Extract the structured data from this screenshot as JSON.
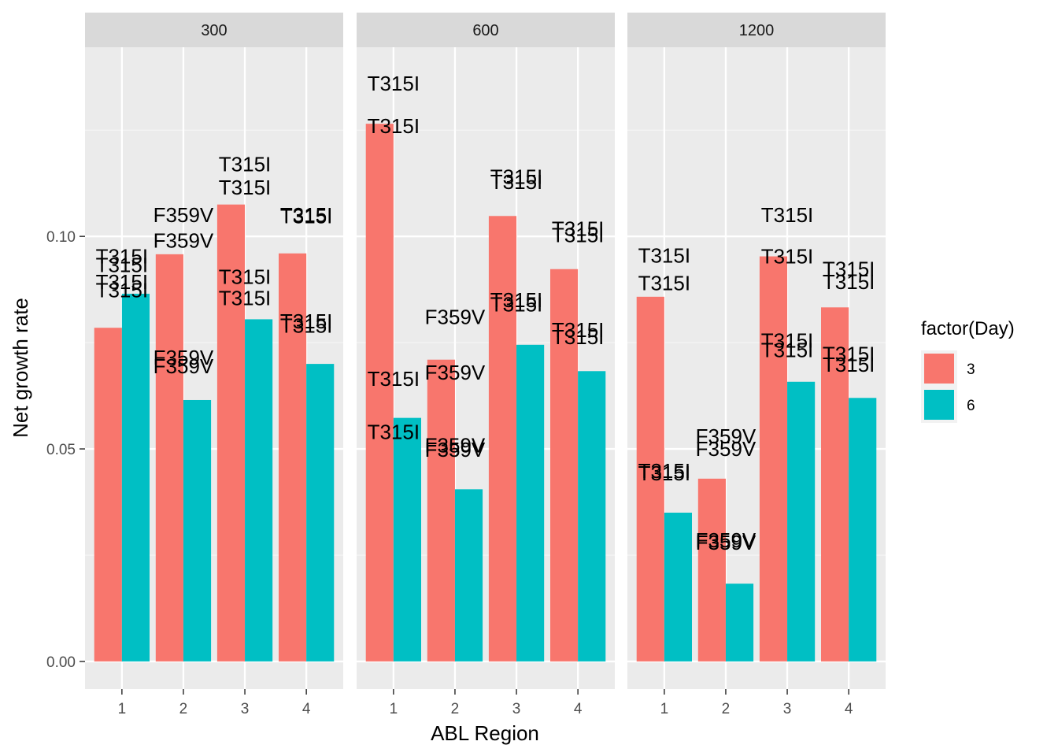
{
  "chart_data": {
    "type": "bar",
    "xlabel": "ABL Region",
    "ylabel": "Net growth rate",
    "ylim": [
      -0.0065,
      0.1445
    ],
    "yticks": [
      0.0,
      0.05,
      0.1
    ],
    "ytick_labels": [
      "0.00",
      "0.05",
      "0.10"
    ],
    "categories": [
      "1",
      "2",
      "3",
      "4"
    ],
    "legend": {
      "title": "factor(Day)",
      "entries": [
        {
          "label": "3",
          "color": "#F8766D"
        },
        {
          "label": "6",
          "color": "#00BFC4"
        }
      ]
    },
    "panels": [
      {
        "title": "300",
        "series": [
          {
            "name": "3",
            "values": [
              0.0785,
              0.0958,
              0.1075,
              0.096
            ]
          },
          {
            "name": "6",
            "values": [
              0.0865,
              0.0615,
              0.0805,
              0.07
            ]
          }
        ],
        "labels": [
          {
            "text": "T315I",
            "x": 1,
            "y": 0.0953
          },
          {
            "text": "T315I",
            "x": 1,
            "y": 0.0933
          },
          {
            "text": "T315I",
            "x": 1,
            "y": 0.0893
          },
          {
            "text": "T315I",
            "x": 1,
            "y": 0.0873
          },
          {
            "text": "F359V",
            "x": 2,
            "y": 0.105
          },
          {
            "text": "F359V",
            "x": 2,
            "y": 0.099
          },
          {
            "text": "F359V",
            "x": 2,
            "y": 0.0715
          },
          {
            "text": "F359V",
            "x": 2,
            "y": 0.0695
          },
          {
            "text": "T315I",
            "x": 3,
            "y": 0.117
          },
          {
            "text": "T315I",
            "x": 3,
            "y": 0.1115
          },
          {
            "text": "T315I",
            "x": 3,
            "y": 0.0905
          },
          {
            "text": "T315I",
            "x": 3,
            "y": 0.0855
          },
          {
            "text": "T315I",
            "x": 4,
            "y": 0.105
          },
          {
            "text": "T315I",
            "x": 4,
            "y": 0.1048
          },
          {
            "text": "T315I",
            "x": 4,
            "y": 0.08
          },
          {
            "text": "T315I",
            "x": 4,
            "y": 0.079
          }
        ]
      },
      {
        "title": "600",
        "series": [
          {
            "name": "3",
            "values": [
              0.1265,
              0.071,
              0.1048,
              0.0923
            ]
          },
          {
            "name": "6",
            "values": [
              0.0573,
              0.0405,
              0.0745,
              0.0683
            ]
          }
        ],
        "labels": [
          {
            "text": "T315I",
            "x": 1,
            "y": 0.136
          },
          {
            "text": "T315I",
            "x": 1,
            "y": 0.126
          },
          {
            "text": "T315I",
            "x": 1,
            "y": 0.0665
          },
          {
            "text": "T315I",
            "x": 1,
            "y": 0.054
          },
          {
            "text": "F359V",
            "x": 2,
            "y": 0.081
          },
          {
            "text": "F359V",
            "x": 2,
            "y": 0.068
          },
          {
            "text": "F359V",
            "x": 2,
            "y": 0.0508
          },
          {
            "text": "F359V",
            "x": 2,
            "y": 0.0498
          },
          {
            "text": "T315I",
            "x": 3,
            "y": 0.114
          },
          {
            "text": "T315I",
            "x": 3,
            "y": 0.1128
          },
          {
            "text": "T315I",
            "x": 3,
            "y": 0.085
          },
          {
            "text": "T315I",
            "x": 3,
            "y": 0.084
          },
          {
            "text": "T315I",
            "x": 4,
            "y": 0.1018
          },
          {
            "text": "T315I",
            "x": 4,
            "y": 0.1003
          },
          {
            "text": "T315I",
            "x": 4,
            "y": 0.078
          },
          {
            "text": "T315I",
            "x": 4,
            "y": 0.0763
          }
        ]
      },
      {
        "title": "1200",
        "series": [
          {
            "name": "3",
            "values": [
              0.0858,
              0.043,
              0.0953,
              0.0833
            ]
          },
          {
            "name": "6",
            "values": [
              0.035,
              0.0183,
              0.0658,
              0.062
            ]
          }
        ],
        "labels": [
          {
            "text": "T315I",
            "x": 1,
            "y": 0.0955
          },
          {
            "text": "T315I",
            "x": 1,
            "y": 0.089
          },
          {
            "text": "T315I",
            "x": 1,
            "y": 0.0448
          },
          {
            "text": "T315I",
            "x": 1,
            "y": 0.0443
          },
          {
            "text": "F359V",
            "x": 2,
            "y": 0.053
          },
          {
            "text": "F359V",
            "x": 2,
            "y": 0.05
          },
          {
            "text": "F359V",
            "x": 2,
            "y": 0.0285
          },
          {
            "text": "F359V",
            "x": 2,
            "y": 0.028
          },
          {
            "text": "T315I",
            "x": 3,
            "y": 0.105
          },
          {
            "text": "T315I",
            "x": 3,
            "y": 0.0953
          },
          {
            "text": "T315I",
            "x": 3,
            "y": 0.0755
          },
          {
            "text": "T315I",
            "x": 3,
            "y": 0.0733
          },
          {
            "text": "T315I",
            "x": 4,
            "y": 0.0923
          },
          {
            "text": "T315I",
            "x": 4,
            "y": 0.0893
          },
          {
            "text": "T315I",
            "x": 4,
            "y": 0.0723
          },
          {
            "text": "T315I",
            "x": 4,
            "y": 0.0698
          }
        ]
      }
    ]
  }
}
